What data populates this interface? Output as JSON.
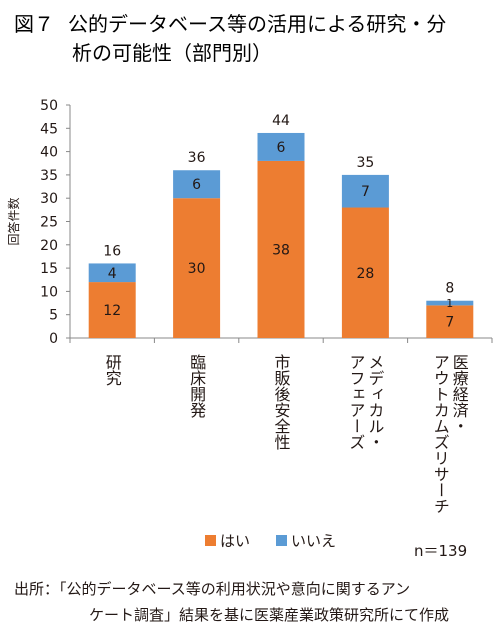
{
  "figure": {
    "label": "図７",
    "title_line1": "公的データベース等の活用による研究・分",
    "title_line2": "析の可能性（部門別）"
  },
  "chart_data": {
    "type": "bar",
    "stacked": true,
    "categories": [
      "研究",
      "臨床開発",
      "市販後安全性",
      "メディカル・アフェアーズ",
      "医療経済・アウトカムズリサーチ"
    ],
    "category_columns": [
      [
        "研究"
      ],
      [
        "臨床開発"
      ],
      [
        "市販後安全性"
      ],
      [
        "メディカル・",
        "アフェアーズ"
      ],
      [
        "医療経済・",
        "アウトカムズリサーチ"
      ]
    ],
    "series": [
      {
        "name": "はい",
        "values": [
          12,
          30,
          38,
          28,
          7
        ],
        "color": "#ED7D31"
      },
      {
        "name": "いいえ",
        "values": [
          4,
          6,
          6,
          7,
          1
        ],
        "color": "#5B9BD5"
      }
    ],
    "totals": [
      16,
      36,
      44,
      35,
      8
    ],
    "ylabel": "回答件数",
    "ylim": [
      0,
      50
    ],
    "yticks": [
      0,
      5,
      10,
      15,
      20,
      25,
      30,
      35,
      40,
      45,
      50
    ],
    "grid": false,
    "legend_position": "bottom"
  },
  "note": "n＝139",
  "source": {
    "line1": "出所：「公的データベース等の利用状況や意向に関するアン",
    "line2": "ケート調査」結果を基に医薬産業政策研究所にて作成"
  }
}
